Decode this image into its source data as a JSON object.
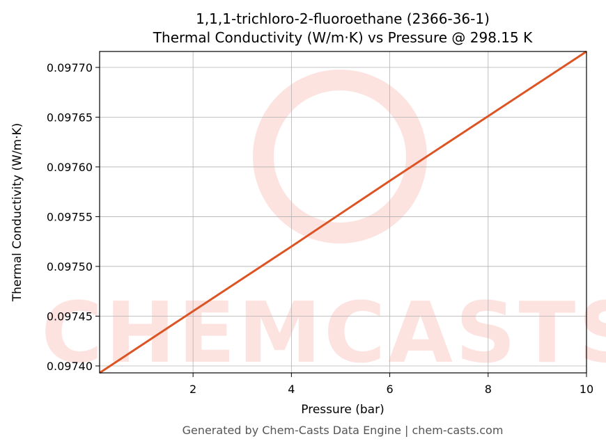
{
  "chart_data": {
    "type": "line",
    "title": "1,1,1-trichloro-2-fluoroethane (2366-36-1)",
    "subtitle": "Thermal Conductivity (W/m·K) vs Pressure @ 298.15 K",
    "x_label": "Pressure (bar)",
    "y_label": "Thermal Conductivity (W/m·K)",
    "footer": "Generated by Chem-Casts Data Engine | chem-casts.com",
    "watermark": "CHEMCASTS",
    "x": [
      0.1,
      2,
      4,
      6,
      8,
      10
    ],
    "series": [
      {
        "name": "Thermal Conductivity",
        "color": "#dd5424",
        "values": [
          0.097393,
          0.097455,
          0.09752,
          0.097586,
          0.097651,
          0.097716
        ]
      }
    ],
    "xlim": [
      0.1,
      10
    ],
    "xticks": [
      2,
      4,
      6,
      8,
      10
    ],
    "ylim": [
      0.097393,
      0.097716
    ],
    "yticks": [
      {
        "value": 0.0974,
        "label": "0.09740"
      },
      {
        "value": 0.09745,
        "label": "0.09745"
      },
      {
        "value": 0.0975,
        "label": "0.09750"
      },
      {
        "value": 0.09755,
        "label": "0.09755"
      },
      {
        "value": 0.0976,
        "label": "0.09760"
      },
      {
        "value": 0.09765,
        "label": "0.09765"
      },
      {
        "value": 0.0977,
        "label": "0.09770"
      }
    ],
    "grid": true
  }
}
